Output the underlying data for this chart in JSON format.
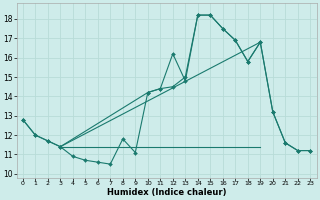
{
  "xlabel": "Humidex (Indice chaleur)",
  "background_color": "#ceecea",
  "grid_color": "#b8dcd8",
  "line_color": "#1a7a6e",
  "xlim": [
    -0.5,
    23.5
  ],
  "ylim": [
    9.8,
    18.8
  ],
  "yticks": [
    10,
    11,
    12,
    13,
    14,
    15,
    16,
    17,
    18
  ],
  "xticks": [
    0,
    1,
    2,
    3,
    4,
    5,
    6,
    7,
    8,
    9,
    10,
    11,
    12,
    13,
    14,
    15,
    16,
    17,
    18,
    19,
    20,
    21,
    22,
    23
  ],
  "line1_x": [
    0,
    1,
    2,
    3,
    4,
    5,
    6,
    7,
    8,
    9,
    10,
    11,
    12,
    13,
    14,
    15,
    16,
    17,
    18,
    19,
    20,
    21,
    22,
    23
  ],
  "line1_y": [
    12.8,
    12.0,
    11.7,
    11.4,
    10.9,
    10.7,
    10.6,
    10.5,
    11.8,
    11.1,
    14.2,
    14.4,
    16.2,
    14.8,
    18.2,
    18.2,
    17.5,
    16.9,
    15.8,
    16.8,
    13.2,
    11.6,
    11.2,
    11.2
  ],
  "line2_x": [
    0,
    1,
    2,
    3,
    10,
    11,
    12,
    13,
    14,
    15,
    16,
    17,
    18,
    19,
    20,
    21,
    22,
    23
  ],
  "line2_y": [
    12.8,
    12.0,
    11.7,
    11.4,
    14.2,
    14.4,
    14.5,
    15.0,
    18.2,
    18.2,
    17.5,
    16.9,
    15.8,
    16.8,
    13.2,
    11.6,
    11.2,
    11.2
  ],
  "line3_x": [
    3,
    19
  ],
  "line3_y": [
    11.4,
    16.8
  ],
  "line4_x": [
    3,
    19
  ],
  "line4_y": [
    11.4,
    11.4
  ],
  "marker_style": "D",
  "marker_size": 2.0,
  "line_width": 0.8
}
